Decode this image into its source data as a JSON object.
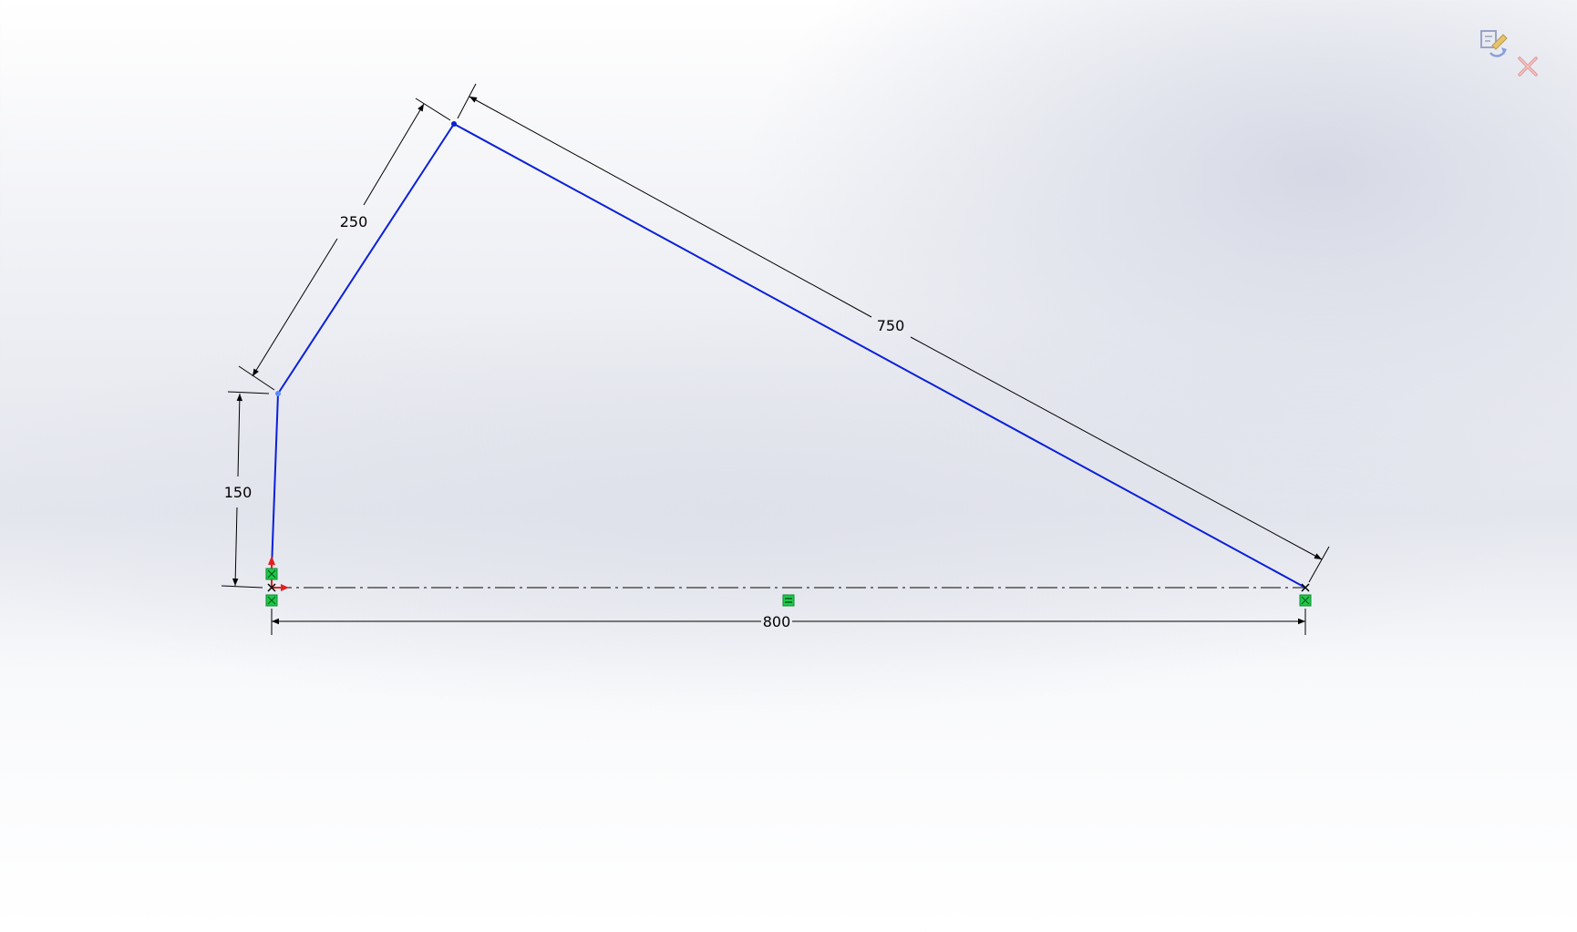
{
  "confirm_corner": {
    "accept_icon": "rebuild-exit-sketch-icon",
    "cancel_icon": "close-icon"
  },
  "sketch": {
    "dimensions": {
      "left_vertical": "150",
      "left_inclined": "250",
      "top_inclined": "750",
      "base": "800"
    },
    "colors": {
      "sketch_line": "#0a1fd8",
      "dimension": "#000000",
      "relation_badge": "#1fc94a",
      "origin_red": "#e02020"
    },
    "relation_icons": [
      "fixed-relation-icon",
      "horizontal-relation-icon",
      "fixed-relation-icon"
    ]
  }
}
